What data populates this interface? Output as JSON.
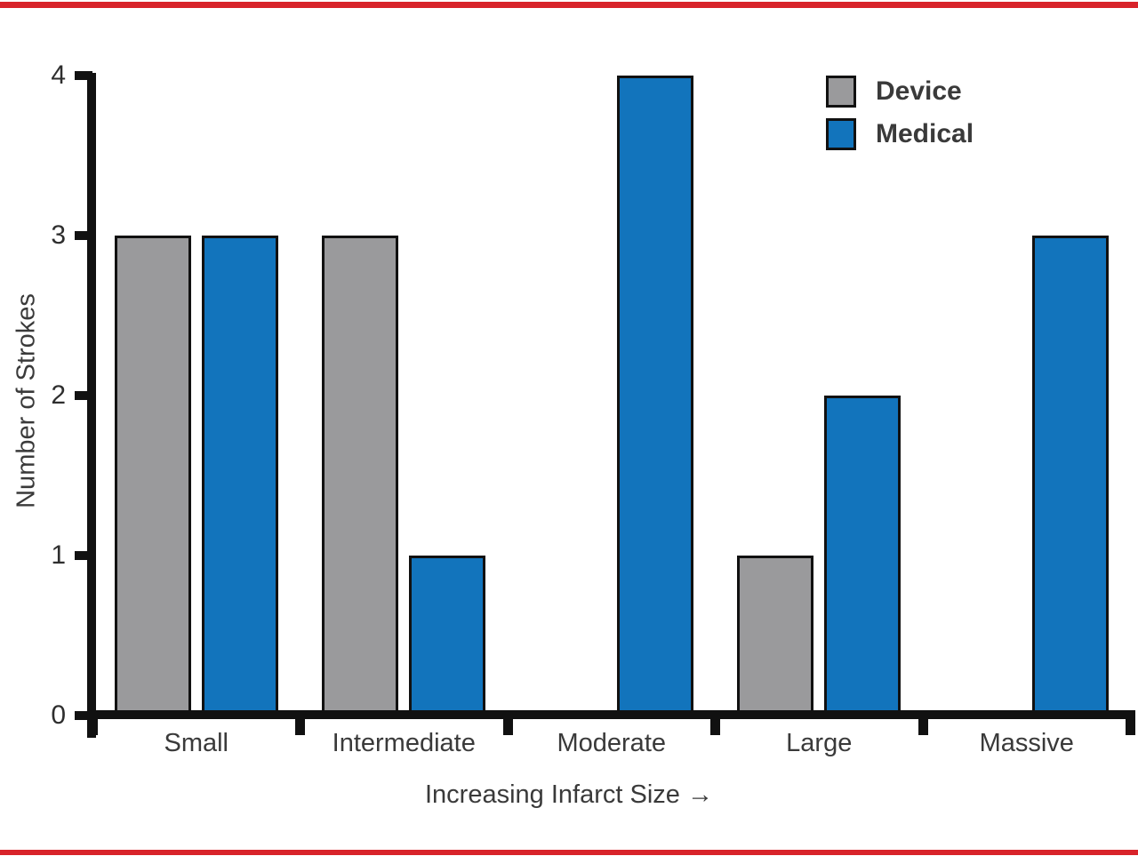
{
  "page": {
    "top_rule_color": "#d8232a",
    "bottom_rule_color": "#d8232a",
    "background": "#ffffff"
  },
  "chart_data": {
    "type": "bar",
    "categories": [
      "Small",
      "Intermediate",
      "Moderate",
      "Large",
      "Massive"
    ],
    "series": [
      {
        "name": "Device",
        "color": "#9a9a9c",
        "values": [
          3,
          3,
          null,
          1,
          null
        ]
      },
      {
        "name": "Medical",
        "color": "#1274bc",
        "values": [
          3,
          1,
          4,
          2,
          3
        ]
      }
    ],
    "xlabel": "Increasing Infarct Size →",
    "ylabel": "Number of Strokes",
    "yticks": [
      0,
      1,
      2,
      3,
      4
    ],
    "ylim": [
      0,
      4
    ],
    "grid": false,
    "legend_position": "top-right",
    "axis_color": "#111111",
    "bar_border_color": "#111111",
    "text_color": "#3a3a3a"
  }
}
